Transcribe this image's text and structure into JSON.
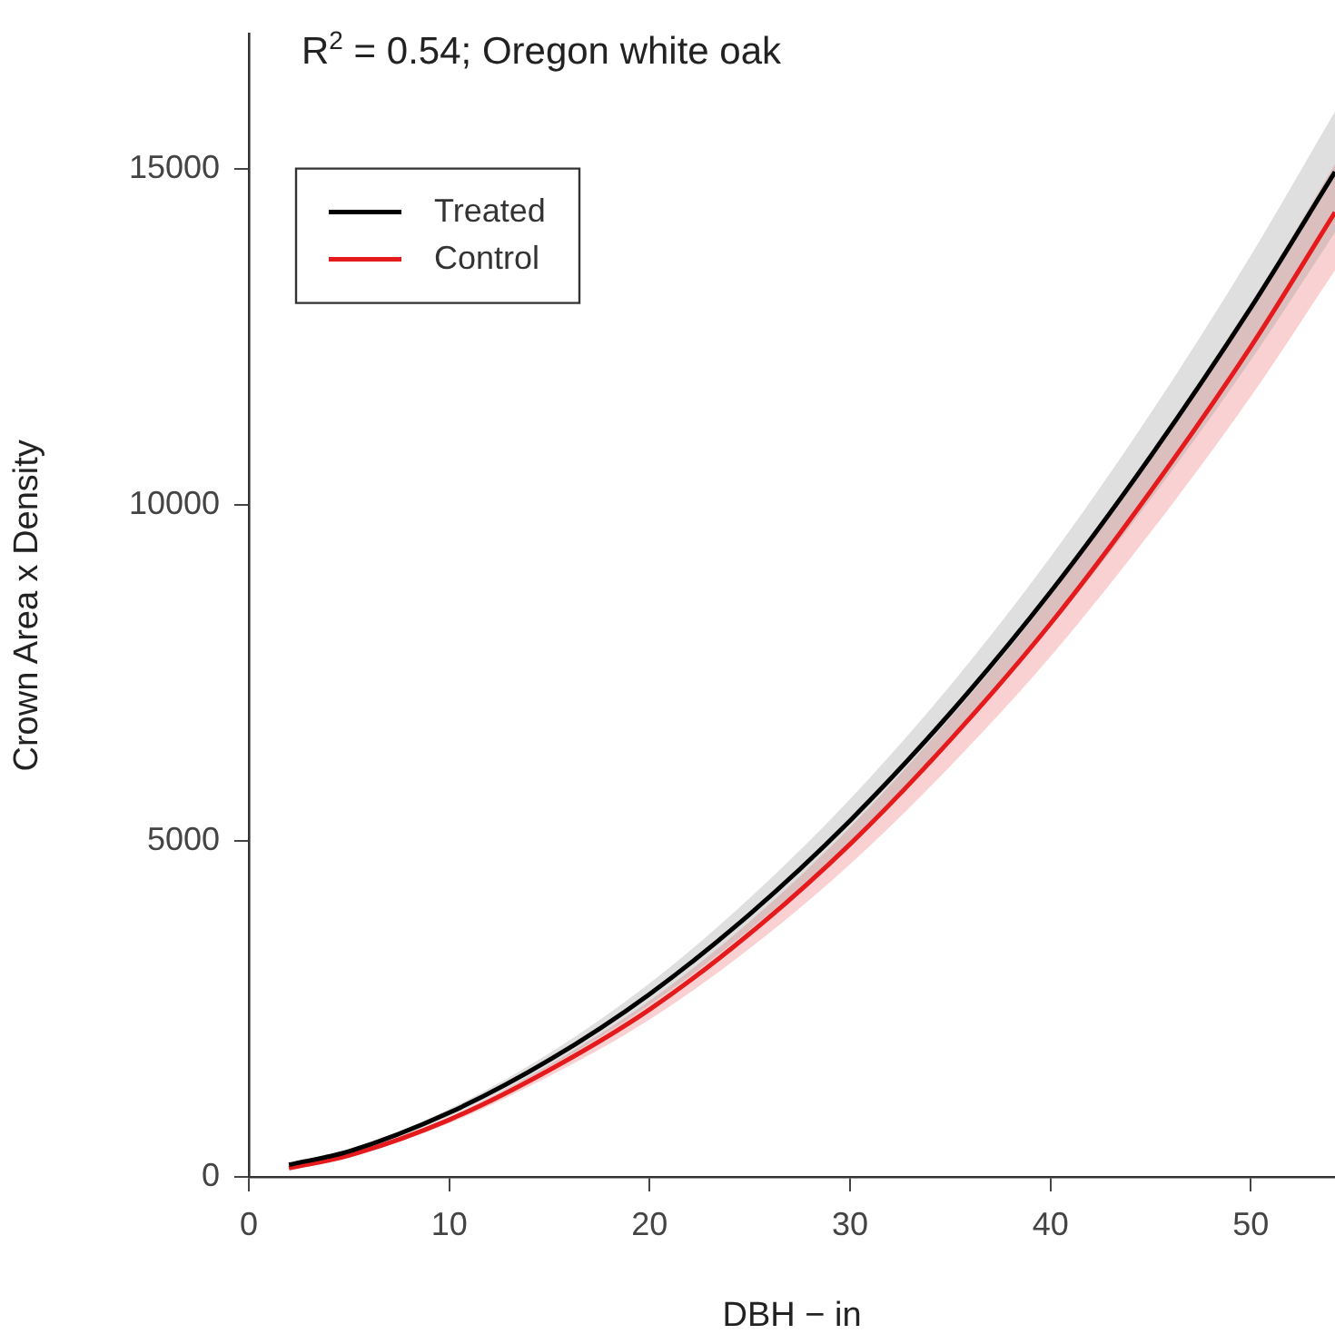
{
  "chart_data": {
    "type": "line",
    "title": "R$^{2}$ = 0.54; Oregon white oak",
    "xlabel": "DBH − in",
    "ylabel": "Crown Area x Density",
    "x": [
      2,
      5,
      10,
      15,
      20,
      25,
      30,
      35,
      40,
      45,
      50,
      54.2
    ],
    "series": [
      {
        "name": "Treated",
        "color": "#000000",
        "values": [
          180,
          380,
          955,
          1740,
          2720,
          3910,
          5300,
          6900,
          8700,
          10720,
          12930,
          14950
        ],
        "lower": [
          170,
          360,
          900,
          1640,
          2560,
          3680,
          4980,
          6490,
          8180,
          10080,
          12150,
          14050
        ],
        "upper": [
          190,
          400,
          1010,
          1840,
          2880,
          4150,
          5620,
          7310,
          9220,
          11360,
          13710,
          15850
        ]
      },
      {
        "name": "Control",
        "color": "#e41a1c",
        "values": [
          130,
          320,
          850,
          1590,
          2490,
          3620,
          4950,
          6500,
          8230,
          10200,
          12350,
          14350
        ],
        "lower": [
          120,
          300,
          800,
          1500,
          2340,
          3400,
          4650,
          6110,
          7740,
          9590,
          11610,
          13490
        ],
        "upper": [
          140,
          340,
          890,
          1670,
          2620,
          3800,
          5200,
          6830,
          8640,
          10710,
          12970,
          15070
        ]
      }
    ],
    "xlim": [
      0,
      54.2
    ],
    "ylim": [
      0,
      17000
    ],
    "xticks": [
      0,
      10,
      20,
      30,
      40,
      50
    ],
    "yticks": [
      0,
      5000,
      10000,
      15000
    ],
    "grid": false,
    "legend": "top left",
    "marker": "none",
    "line_style": "solid"
  }
}
